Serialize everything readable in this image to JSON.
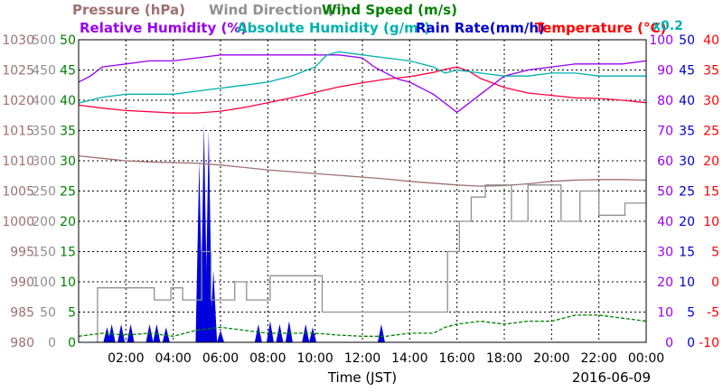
{
  "chart_data": {
    "type": "line",
    "date": "2016-06-09",
    "xlabel": "Time (JST)",
    "x_ticks": [
      "02:00",
      "04:00",
      "06:00",
      "08:00",
      "10:00",
      "12:00",
      "14:00",
      "16:00",
      "18:00",
      "20:00",
      "22:00",
      "00:00"
    ],
    "x_range_hours": [
      0,
      24
    ],
    "grid": true,
    "titles_row1": [
      {
        "text": "Pressure (hPa)",
        "color": "#a07070"
      },
      {
        "text": "Wind Direction (°)",
        "color": "#909090"
      },
      {
        "text": "Wind Speed (m/s)",
        "color": "#008000"
      }
    ],
    "titles_row2": [
      {
        "text": "Relative Humidity (%)",
        "color": "#9900ee"
      },
      {
        "text": "Absolute Humidity (g/m³)",
        "color": "#00b0b0"
      },
      {
        "text": "Rain Rate(mm/h)",
        "color": "#0000cc"
      },
      {
        "text": "Temperature (°C)",
        "color": "#ff0000"
      }
    ],
    "multiplier_note": "x0.2",
    "axes": {
      "pressure": {
        "color": "#a07070",
        "range": [
          980,
          1030
        ],
        "ticks": [
          "980",
          "985",
          "990",
          "995",
          "1000",
          "1005",
          "1010",
          "1015",
          "1020",
          "1025",
          "1030"
        ]
      },
      "wind_direction": {
        "color": "#909090",
        "range": [
          0,
          500
        ],
        "ticks": [
          "0",
          "50",
          "100",
          "150",
          "200",
          "250",
          "300",
          "350",
          "400",
          "450",
          "500"
        ]
      },
      "wind_speed": {
        "color": "#008000",
        "range": [
          0,
          50
        ],
        "ticks": [
          "0",
          "5",
          "10",
          "15",
          "20",
          "25",
          "30",
          "35",
          "40",
          "45",
          "50"
        ]
      },
      "humidity": {
        "color": "#9900ee",
        "range": [
          0,
          100
        ],
        "ticks": [
          "0",
          "10",
          "20",
          "30",
          "40",
          "50",
          "60",
          "70",
          "80",
          "90",
          "100"
        ]
      },
      "rain": {
        "color": "#0000cc",
        "range": [
          0,
          50
        ],
        "ticks": [
          "0",
          "5",
          "10",
          "15",
          "20",
          "25",
          "30",
          "35",
          "40",
          "45",
          "50"
        ]
      },
      "temperature": {
        "color": "#ff0000",
        "range": [
          -10,
          40
        ],
        "ticks": [
          "-10",
          "-5",
          "0",
          "5",
          "10",
          "15",
          "20",
          "25",
          "30",
          "35",
          "40"
        ]
      }
    },
    "series": [
      {
        "name": "Temperature (°C)",
        "axis": "temperature",
        "color": "#ff0040",
        "x": [
          0,
          1,
          2,
          3,
          4,
          5,
          6,
          7,
          8,
          9,
          10,
          11,
          12,
          13,
          14,
          15,
          15.5,
          16,
          16.5,
          17,
          18,
          19,
          20,
          21,
          22,
          23,
          24
        ],
        "y": [
          29.2,
          28.7,
          28.3,
          28.1,
          27.9,
          27.9,
          28.2,
          28.8,
          29.6,
          30.4,
          31.3,
          32.2,
          32.9,
          33.5,
          33.9,
          34.6,
          35.1,
          35.5,
          34.8,
          33.6,
          32.1,
          31.2,
          30.8,
          30.4,
          30.3,
          30.0,
          29.6
        ]
      },
      {
        "name": "Pressure (hPa)",
        "axis": "pressure",
        "color": "#a07070",
        "x": [
          0,
          1,
          2,
          3,
          4,
          5,
          6,
          7,
          8,
          9,
          10,
          11,
          12,
          13,
          14,
          15,
          16,
          17,
          18,
          19,
          20,
          21,
          22,
          23,
          24
        ],
        "y": [
          1010.8,
          1010.4,
          1010.0,
          1009.8,
          1009.7,
          1009.6,
          1009.3,
          1008.9,
          1008.5,
          1008.2,
          1007.9,
          1007.6,
          1007.3,
          1007.0,
          1006.6,
          1006.3,
          1006.0,
          1005.8,
          1005.9,
          1006.2,
          1006.6,
          1006.8,
          1006.9,
          1006.9,
          1006.8
        ]
      },
      {
        "name": "Relative Humidity (%)",
        "axis": "humidity",
        "color": "#9900ee",
        "x": [
          0,
          0.5,
          1,
          2,
          3,
          4,
          5,
          6,
          7,
          8,
          9,
          10,
          11,
          12,
          12.5,
          13,
          13.5,
          14,
          14.5,
          15,
          15.5,
          16,
          16.5,
          17,
          17.5,
          18,
          19,
          20,
          21,
          22,
          23,
          24
        ],
        "y": [
          86,
          88,
          91,
          92,
          93,
          93,
          94,
          95,
          95,
          95,
          95,
          95,
          95,
          94,
          91,
          89,
          87,
          86,
          84,
          82,
          79,
          76,
          79,
          82,
          85,
          88,
          90,
          91,
          92,
          92,
          92,
          93
        ]
      },
      {
        "name": "Absolute Humidity (g/m³)",
        "axis": "humidity",
        "color": "#00b0b0",
        "x": [
          0,
          1,
          2,
          3,
          4,
          5,
          6,
          7,
          8,
          9,
          10,
          10.5,
          11,
          12,
          13,
          14,
          15,
          15.5,
          16,
          17,
          18,
          19,
          20,
          21,
          22,
          23,
          24
        ],
        "y": [
          79,
          81,
          82,
          82,
          82,
          83,
          84,
          85,
          86,
          88,
          91,
          95,
          96,
          95,
          94,
          93,
          91,
          89,
          90,
          89,
          88,
          88,
          89,
          89,
          88,
          88,
          88
        ]
      },
      {
        "name": "Wind Direction (°)",
        "axis": "wind_direction",
        "color": "#909090",
        "x": [
          0.8,
          0.8,
          3.2,
          3.2,
          3.9,
          3.9,
          4.4,
          4.4,
          5.2,
          5.2,
          5.6,
          5.6,
          6.6,
          6.6,
          7.1,
          7.1,
          8.1,
          8.1,
          10,
          10,
          10.3,
          10.3,
          12.6,
          12.6,
          15.6,
          15.6,
          16.1,
          16.1,
          16.6,
          16.6,
          17.2,
          17.2,
          18.3,
          18.3,
          19.0,
          19.0,
          20.4,
          20.4,
          21.2,
          21.2,
          22.0,
          22.0,
          23.1,
          23.1,
          24
        ],
        "y": [
          0,
          90,
          90,
          70,
          70,
          90,
          90,
          70,
          70,
          150,
          150,
          70,
          70,
          100,
          100,
          70,
          70,
          110,
          110,
          110,
          110,
          50,
          50,
          50,
          50,
          150,
          150,
          200,
          200,
          240,
          240,
          260,
          260,
          200,
          200,
          260,
          260,
          200,
          200,
          250,
          250,
          210,
          210,
          230,
          230
        ]
      },
      {
        "name": "Wind Speed (m/s)",
        "axis": "wind_speed",
        "color": "#008000",
        "x": [
          0,
          1,
          2,
          3,
          4,
          5,
          6,
          7,
          8,
          9,
          10,
          11,
          12,
          13,
          14,
          15,
          15.5,
          16,
          17,
          18,
          19,
          20,
          21,
          22,
          23,
          24
        ],
        "y": [
          1,
          1.5,
          1.2,
          1.5,
          1,
          2,
          2.5,
          2,
          1.5,
          1.5,
          1.5,
          1.2,
          1,
          1,
          1.5,
          1.5,
          2.5,
          3,
          3.5,
          3,
          3.5,
          3.5,
          4.5,
          4.5,
          4,
          3.5
        ]
      }
    ],
    "rain_spikes": [
      {
        "x": 1.2,
        "y": 2.5
      },
      {
        "x": 1.4,
        "y": 3
      },
      {
        "x": 1.8,
        "y": 3
      },
      {
        "x": 2.2,
        "y": 3
      },
      {
        "x": 3.0,
        "y": 3
      },
      {
        "x": 3.3,
        "y": 3
      },
      {
        "x": 3.7,
        "y": 2.5
      },
      {
        "x": 5.1,
        "y": 30
      },
      {
        "x": 5.3,
        "y": 36
      },
      {
        "x": 5.5,
        "y": 35
      },
      {
        "x": 5.7,
        "y": 12
      },
      {
        "x": 6.0,
        "y": 2
      },
      {
        "x": 7.6,
        "y": 3
      },
      {
        "x": 8.1,
        "y": 3.5
      },
      {
        "x": 8.5,
        "y": 3
      },
      {
        "x": 8.9,
        "y": 3.5
      },
      {
        "x": 9.6,
        "y": 3
      },
      {
        "x": 9.9,
        "y": 2.5
      },
      {
        "x": 12.8,
        "y": 3
      }
    ]
  }
}
